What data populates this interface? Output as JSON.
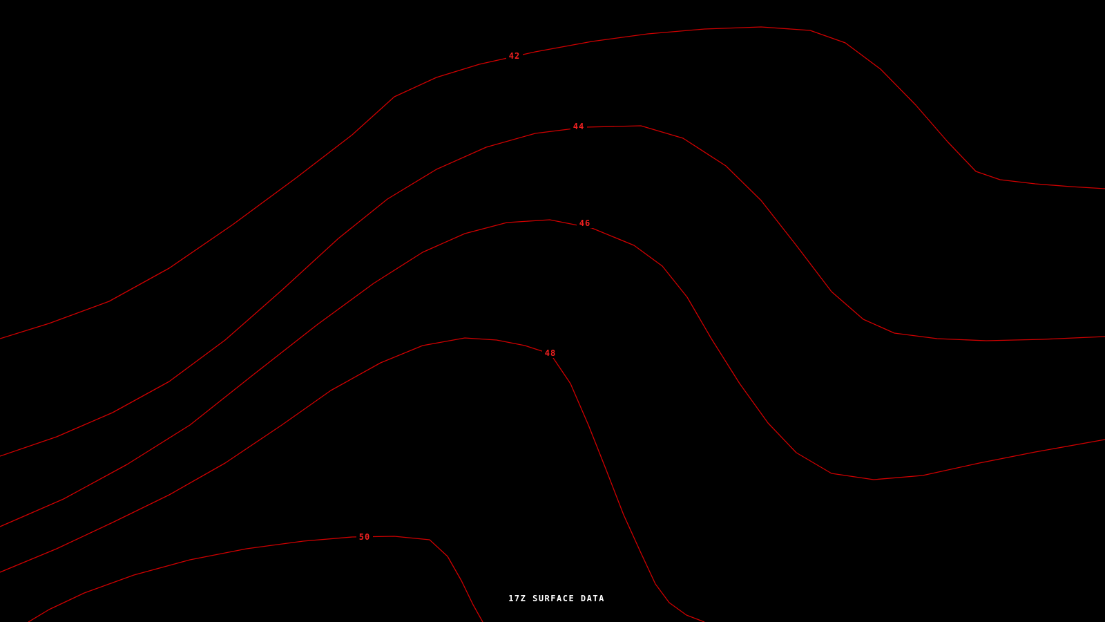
{
  "chart_data": {
    "type": "line",
    "subtype": "contour-analysis",
    "title": "17Z SURFACE DATA",
    "background_color": "#000000",
    "line_color": "#d00000",
    "label_color": "#f02020",
    "title_color": "#ffffff",
    "grid": false,
    "legend": false,
    "x_range": [
      0,
      1600
    ],
    "y_range": [
      0,
      900
    ],
    "contour_values": [
      42,
      44,
      46,
      48,
      50
    ],
    "contours": [
      {
        "label": "42",
        "value": 42,
        "label_x": 745,
        "label_y": 80,
        "points": [
          [
            0,
            490
          ],
          [
            71,
            468
          ],
          [
            158,
            436
          ],
          [
            245,
            388
          ],
          [
            337,
            325
          ],
          [
            428,
            258
          ],
          [
            510,
            195
          ],
          [
            571,
            140
          ],
          [
            632,
            112
          ],
          [
            694,
            93
          ],
          [
            775,
            75
          ],
          [
            857,
            60
          ],
          [
            938,
            49
          ],
          [
            1020,
            42
          ],
          [
            1102,
            39
          ],
          [
            1173,
            44
          ],
          [
            1224,
            62
          ],
          [
            1275,
            100
          ],
          [
            1326,
            152
          ],
          [
            1372,
            205
          ],
          [
            1413,
            248
          ],
          [
            1448,
            260
          ],
          [
            1499,
            266
          ],
          [
            1550,
            270
          ],
          [
            1600,
            273
          ]
        ]
      },
      {
        "label": "44",
        "value": 44,
        "label_x": 838,
        "label_y": 182,
        "points": [
          [
            0,
            660
          ],
          [
            82,
            632
          ],
          [
            163,
            597
          ],
          [
            245,
            552
          ],
          [
            326,
            492
          ],
          [
            408,
            420
          ],
          [
            490,
            345
          ],
          [
            561,
            288
          ],
          [
            632,
            245
          ],
          [
            704,
            213
          ],
          [
            775,
            193
          ],
          [
            847,
            184
          ],
          [
            928,
            182
          ],
          [
            989,
            200
          ],
          [
            1051,
            240
          ],
          [
            1102,
            290
          ],
          [
            1153,
            355
          ],
          [
            1204,
            422
          ],
          [
            1250,
            462
          ],
          [
            1295,
            482
          ],
          [
            1357,
            490
          ],
          [
            1428,
            493
          ],
          [
            1510,
            491
          ],
          [
            1600,
            487
          ]
        ]
      },
      {
        "label": "46",
        "value": 46,
        "label_x": 847,
        "label_y": 322,
        "points": [
          [
            0,
            762
          ],
          [
            92,
            722
          ],
          [
            184,
            672
          ],
          [
            275,
            615
          ],
          [
            367,
            542
          ],
          [
            459,
            470
          ],
          [
            541,
            410
          ],
          [
            612,
            365
          ],
          [
            673,
            338
          ],
          [
            734,
            322
          ],
          [
            796,
            318
          ],
          [
            857,
            330
          ],
          [
            918,
            355
          ],
          [
            959,
            385
          ],
          [
            995,
            430
          ],
          [
            1030,
            490
          ],
          [
            1071,
            555
          ],
          [
            1112,
            612
          ],
          [
            1153,
            655
          ],
          [
            1204,
            685
          ],
          [
            1265,
            694
          ],
          [
            1336,
            688
          ],
          [
            1418,
            670
          ],
          [
            1499,
            654
          ],
          [
            1600,
            636
          ]
        ]
      },
      {
        "label": "48",
        "value": 48,
        "label_x": 797,
        "label_y": 510,
        "points": [
          [
            0,
            828
          ],
          [
            82,
            794
          ],
          [
            163,
            756
          ],
          [
            245,
            716
          ],
          [
            326,
            670
          ],
          [
            408,
            615
          ],
          [
            479,
            565
          ],
          [
            551,
            525
          ],
          [
            612,
            500
          ],
          [
            673,
            489
          ],
          [
            719,
            492
          ],
          [
            760,
            500
          ],
          [
            797,
            512
          ],
          [
            826,
            555
          ],
          [
            852,
            615
          ],
          [
            877,
            678
          ],
          [
            903,
            745
          ],
          [
            928,
            800
          ],
          [
            949,
            845
          ],
          [
            969,
            872
          ],
          [
            994,
            890
          ],
          [
            1020,
            900
          ]
        ]
      },
      {
        "label": "50",
        "value": 50,
        "label_x": 528,
        "label_y": 776,
        "points": [
          [
            41,
            900
          ],
          [
            71,
            882
          ],
          [
            122,
            858
          ],
          [
            194,
            832
          ],
          [
            275,
            810
          ],
          [
            357,
            794
          ],
          [
            439,
            783
          ],
          [
            510,
            777
          ],
          [
            571,
            776
          ],
          [
            622,
            781
          ],
          [
            648,
            805
          ],
          [
            668,
            840
          ],
          [
            685,
            875
          ],
          [
            699,
            900
          ]
        ]
      }
    ]
  }
}
